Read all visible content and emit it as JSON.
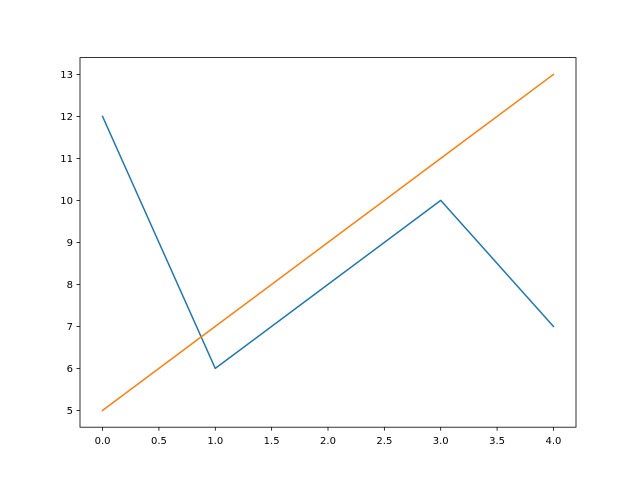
{
  "chart_data": {
    "type": "line",
    "title": "",
    "xlabel": "",
    "ylabel": "",
    "xlim": [
      -0.2,
      4.2
    ],
    "ylim": [
      4.6,
      13.4
    ],
    "grid": false,
    "x": [
      0,
      1,
      2,
      3,
      4
    ],
    "xticks": [
      "0.0",
      "0.5",
      "1.0",
      "1.5",
      "2.0",
      "2.5",
      "3.0",
      "3.5",
      "4.0"
    ],
    "yticks": [
      "5",
      "6",
      "7",
      "8",
      "9",
      "10",
      "11",
      "12",
      "13"
    ],
    "series": [
      {
        "values": [
          12,
          6,
          8,
          10,
          7
        ],
        "color": "#1f77b4"
      },
      {
        "values": [
          5,
          7,
          9,
          11,
          13
        ],
        "color": "#ff7f0e"
      }
    ]
  }
}
